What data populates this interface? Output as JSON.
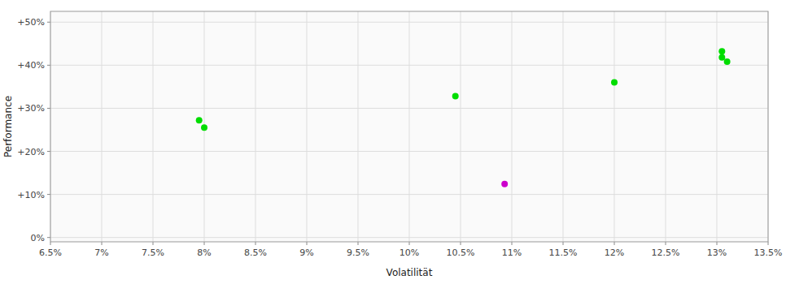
{
  "chart_data": {
    "type": "scatter",
    "xlabel": "Volatilität",
    "ylabel": "Performance",
    "xlim": [
      0.065,
      0.135
    ],
    "ylim": [
      -0.01,
      0.525
    ],
    "xticks": [
      {
        "value": 0.065,
        "label": "6.5%"
      },
      {
        "value": 0.07,
        "label": "7%"
      },
      {
        "value": 0.075,
        "label": "7.5%"
      },
      {
        "value": 0.08,
        "label": "8%"
      },
      {
        "value": 0.085,
        "label": "8.5%"
      },
      {
        "value": 0.09,
        "label": "9%"
      },
      {
        "value": 0.095,
        "label": "9.5%"
      },
      {
        "value": 0.1,
        "label": "10%"
      },
      {
        "value": 0.105,
        "label": "10.5%"
      },
      {
        "value": 0.11,
        "label": "11%"
      },
      {
        "value": 0.115,
        "label": "11.5%"
      },
      {
        "value": 0.12,
        "label": "12%"
      },
      {
        "value": 0.125,
        "label": "12.5%"
      },
      {
        "value": 0.13,
        "label": "13%"
      },
      {
        "value": 0.135,
        "label": "13.5%"
      }
    ],
    "yticks": [
      {
        "value": 0.0,
        "label": "0%"
      },
      {
        "value": 0.1,
        "label": "+10%"
      },
      {
        "value": 0.2,
        "label": "+20%"
      },
      {
        "value": 0.3,
        "label": "+30%"
      },
      {
        "value": 0.4,
        "label": "+40%"
      },
      {
        "value": 0.5,
        "label": "+50%"
      }
    ],
    "grid": true,
    "series": [
      {
        "color": "#00dd00",
        "x": [
          0.0795,
          0.08,
          0.1045,
          0.12,
          0.1305,
          0.1305,
          0.131
        ],
        "values": [
          0.272,
          0.255,
          0.328,
          0.36,
          0.432,
          0.418,
          0.408
        ]
      },
      {
        "color": "#cc00cc",
        "x": [
          0.1093
        ],
        "values": [
          0.124
        ]
      }
    ]
  }
}
